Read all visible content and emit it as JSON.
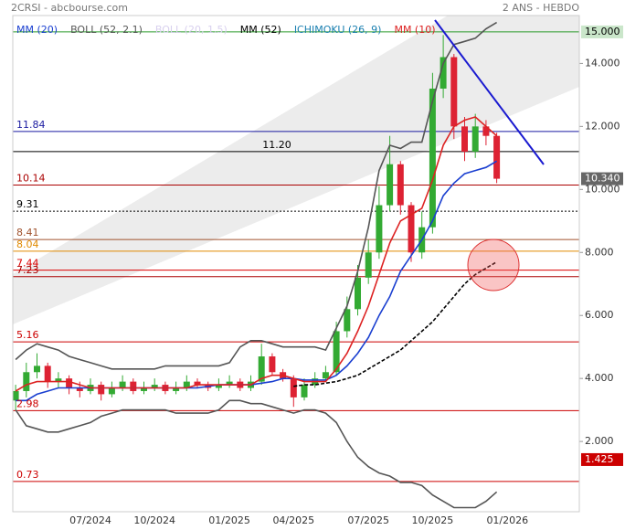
{
  "header": {
    "title": "2CRSI - abcbourse.com",
    "period": "2 ANS - HEBDO"
  },
  "chart_data": {
    "type": "candlestick",
    "categories": [
      null,
      null,
      null,
      null,
      null,
      null,
      null,
      "07/2024",
      null,
      null,
      null,
      null,
      null,
      "10/2024",
      null,
      null,
      null,
      null,
      null,
      null,
      "01/2025",
      null,
      null,
      null,
      null,
      null,
      "04/2025",
      null,
      null,
      null,
      null,
      null,
      null,
      "07/2025",
      null,
      null,
      null,
      null,
      null,
      "10/2025",
      null,
      null,
      null,
      null,
      null,
      null,
      "01/2026"
    ],
    "open": [
      3.3,
      3.6,
      4.2,
      4.4,
      3.9,
      4.0,
      3.7,
      3.6,
      3.8,
      3.5,
      3.7,
      3.9,
      3.6,
      3.7,
      3.8,
      3.6,
      3.7,
      3.9,
      3.8,
      3.7,
      3.8,
      3.9,
      3.7,
      3.9,
      4.7,
      4.2,
      4.0,
      3.4,
      3.8,
      4.0,
      4.2,
      5.5,
      6.2,
      7.2,
      8.0,
      9.5,
      10.8,
      9.5,
      8.0,
      8.8,
      13.2,
      14.2,
      12.0,
      11.2,
      12.0,
      11.7,
      null
    ],
    "high": [
      3.8,
      4.5,
      4.8,
      4.5,
      4.2,
      4.1,
      3.9,
      4.0,
      3.9,
      3.9,
      4.1,
      4.0,
      3.9,
      4.0,
      3.9,
      3.9,
      4.1,
      4.0,
      3.9,
      4.0,
      4.1,
      4.0,
      4.1,
      5.1,
      4.8,
      4.3,
      4.1,
      4.0,
      4.2,
      4.4,
      5.8,
      6.6,
      7.6,
      8.4,
      10.1,
      11.7,
      10.9,
      9.6,
      9.3,
      13.7,
      14.9,
      14.3,
      12.3,
      12.4,
      12.2,
      11.8,
      null
    ],
    "low": [
      3.0,
      3.4,
      4.0,
      3.7,
      3.7,
      3.5,
      3.4,
      3.5,
      3.3,
      3.4,
      3.6,
      3.5,
      3.5,
      3.6,
      3.5,
      3.5,
      3.6,
      3.7,
      3.6,
      3.6,
      3.7,
      3.6,
      3.6,
      3.8,
      4.1,
      3.9,
      3.1,
      3.3,
      3.7,
      3.9,
      4.1,
      5.3,
      6.0,
      7.0,
      7.8,
      9.3,
      9.2,
      7.7,
      7.8,
      8.6,
      12.9,
      11.6,
      10.9,
      11.0,
      11.4,
      10.2,
      null
    ],
    "close": [
      3.6,
      4.2,
      4.4,
      3.9,
      4.0,
      3.7,
      3.6,
      3.8,
      3.5,
      3.7,
      3.9,
      3.6,
      3.7,
      3.8,
      3.6,
      3.7,
      3.9,
      3.8,
      3.7,
      3.8,
      3.9,
      3.7,
      3.9,
      4.7,
      4.2,
      4.0,
      3.4,
      3.8,
      4.0,
      4.2,
      5.5,
      6.2,
      7.2,
      8.0,
      9.5,
      10.8,
      9.5,
      8.0,
      8.8,
      13.2,
      14.2,
      12.0,
      11.2,
      12.0,
      11.7,
      10.34,
      null
    ],
    "up_color": "#33aa33",
    "down_color": "#dd2233",
    "ylim": [
      -0.23,
      15.52
    ],
    "yticks": [
      {
        "value": 2,
        "label": "2.000"
      },
      {
        "value": 4,
        "label": "4.000"
      },
      {
        "value": 6,
        "label": "6.000"
      },
      {
        "value": 8,
        "label": "8.000"
      },
      {
        "value": 10,
        "label": "10.000"
      },
      {
        "value": 12,
        "label": "12.000"
      },
      {
        "value": 14,
        "label": "14.000"
      }
    ],
    "legend": [
      {
        "name": "MM (20)",
        "color": "#1a3fd0"
      },
      {
        "name": "BOLL (52, 2.1)",
        "color": "#555555"
      },
      {
        "name": "BOLL (20, 1.5)",
        "color": "#d8d0ee"
      },
      {
        "name": "MM (52)",
        "color": "#000000"
      },
      {
        "name": "ICHIMOKU (26, 9)",
        "color": "#1a7fb0"
      },
      {
        "name": "MM (10)",
        "color": "#dd2222"
      }
    ],
    "series": [
      {
        "color": "#555555",
        "values": [
          4.6,
          4.9,
          5.1,
          5.0,
          4.9,
          4.7,
          4.6,
          4.5,
          4.4,
          4.3,
          4.3,
          4.3,
          4.3,
          4.3,
          4.4,
          4.4,
          4.4,
          4.4,
          4.4,
          4.4,
          4.5,
          5.0,
          5.2,
          5.2,
          5.1,
          5.0,
          5.0,
          5.0,
          5.0,
          4.9,
          5.6,
          6.3,
          7.4,
          8.8,
          10.6,
          11.4,
          11.3,
          11.5,
          11.5,
          12.8,
          14.0,
          14.6,
          14.7,
          14.8,
          15.1,
          15.3,
          null
        ]
      },
      {
        "color": "#555555",
        "values": [
          3.0,
          2.5,
          2.4,
          2.3,
          2.3,
          2.4,
          2.5,
          2.6,
          2.8,
          2.9,
          3.0,
          3.0,
          3.0,
          3.0,
          3.0,
          2.9,
          2.9,
          2.9,
          2.9,
          3.0,
          3.3,
          3.3,
          3.2,
          3.2,
          3.1,
          3.0,
          2.9,
          3.0,
          3.0,
          2.9,
          2.6,
          2.0,
          1.5,
          1.2,
          1.0,
          0.9,
          0.7,
          0.7,
          0.6,
          0.3,
          0.1,
          -0.1,
          -0.1,
          -0.1,
          0.1,
          0.4,
          null
        ]
      },
      {
        "color": "#000000",
        "dash": true,
        "values": [
          null,
          null,
          null,
          null,
          null,
          null,
          null,
          null,
          null,
          null,
          null,
          null,
          null,
          null,
          null,
          null,
          null,
          null,
          null,
          null,
          null,
          null,
          null,
          null,
          null,
          null,
          3.75,
          3.8,
          3.8,
          3.85,
          3.9,
          4.0,
          4.1,
          4.3,
          4.5,
          4.7,
          4.9,
          5.2,
          5.5,
          5.8,
          6.2,
          6.6,
          7.0,
          7.3,
          7.5,
          7.7,
          null
        ]
      },
      {
        "color": "#1a3fd0",
        "values": [
          3.3,
          3.3,
          3.5,
          3.6,
          3.7,
          3.7,
          3.7,
          3.7,
          3.7,
          3.7,
          3.7,
          3.7,
          3.7,
          3.7,
          3.7,
          3.7,
          3.7,
          3.7,
          3.75,
          3.8,
          3.8,
          3.8,
          3.8,
          3.85,
          3.9,
          4.0,
          4.0,
          3.95,
          3.95,
          3.95,
          4.1,
          4.4,
          4.8,
          5.3,
          6.0,
          6.6,
          7.4,
          7.9,
          8.4,
          9.0,
          9.8,
          10.2,
          10.5,
          10.6,
          10.7,
          10.9,
          null
        ]
      },
      {
        "color": "#dd2222",
        "values": [
          3.6,
          3.8,
          3.9,
          3.9,
          3.9,
          3.9,
          3.8,
          3.7,
          3.7,
          3.7,
          3.7,
          3.7,
          3.7,
          3.7,
          3.7,
          3.7,
          3.7,
          3.8,
          3.8,
          3.8,
          3.8,
          3.8,
          3.8,
          4.0,
          4.1,
          4.1,
          4.0,
          3.9,
          3.9,
          3.9,
          4.3,
          4.8,
          5.5,
          6.3,
          7.3,
          8.3,
          9.0,
          9.2,
          9.4,
          10.3,
          11.4,
          12.0,
          12.2,
          12.3,
          12.0,
          11.7,
          null
        ]
      }
    ],
    "levels": [
      {
        "value": 15,
        "color": "#2a9a2a"
      },
      {
        "value": 11.84,
        "label": "11.84",
        "color": "#1a1aa0"
      },
      {
        "value": 11.2,
        "label": "11.20",
        "color": "#000000",
        "label_align": "center"
      },
      {
        "value": 10.14,
        "label": "10.14",
        "color": "#aa0000"
      },
      {
        "value": 9.31,
        "label": "9.31",
        "color": "#000000",
        "dash": true
      },
      {
        "value": 8.41,
        "label": "8.41",
        "color": "#a0522d"
      },
      {
        "value": 8.04,
        "label": "8.04",
        "color": "#e08a00"
      },
      {
        "value": 7.44,
        "label": "7.44",
        "color": "#dd0000"
      },
      {
        "value": 7.23,
        "label": "7.23",
        "color": "#aa0000"
      },
      {
        "value": 5.16,
        "label": "5.16",
        "color": "#cc0000"
      },
      {
        "value": 2.98,
        "label": "2.98",
        "color": "#cc0000"
      },
      {
        "value": 0.73,
        "label": "0.73",
        "color": "#cc0000"
      }
    ],
    "price_tags": [
      {
        "value": 15,
        "label": "15.000",
        "color": "#2a9a2a",
        "text_color": "#000000"
      },
      {
        "value": 10.34,
        "label": "10.340",
        "color": "#666666",
        "text_color": "#ffffff"
      },
      {
        "value": 1.425,
        "label": "1.425",
        "color": "#cc0000",
        "text_color": "#ffffff"
      }
    ]
  }
}
